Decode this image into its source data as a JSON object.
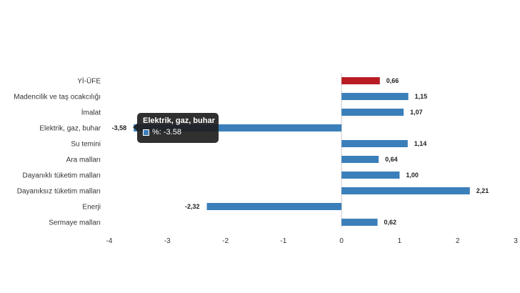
{
  "chart_data": {
    "type": "bar",
    "orientation": "horizontal",
    "categories": [
      "Yİ-ÜFE",
      "Madencilik ve taş ocakcılığı",
      "İmalat",
      "Elektrik, gaz, buhar",
      "Su temini",
      "Ara malları",
      "Dayanıklı tüketim malları",
      "Dayanıksız tüketim malları",
      "Enerji",
      "Sermaye malları"
    ],
    "values": [
      0.66,
      1.15,
      1.07,
      -3.58,
      1.14,
      0.64,
      1.0,
      2.21,
      -2.32,
      0.62
    ],
    "value_labels": [
      "0,66",
      "1,15",
      "1,07",
      "-3,58",
      "1,14",
      "0,64",
      "1,00",
      "2,21",
      "-2,32",
      "0,62"
    ],
    "xlim": [
      -4,
      3
    ],
    "xticks": [
      "-4",
      "-3",
      "-2",
      "-1",
      "0",
      "1",
      "2",
      "3"
    ],
    "colors": {
      "default": "#3a7fba",
      "highlight": "#b81c22"
    },
    "highlight_index": 0,
    "title": "",
    "xlabel": "",
    "ylabel": "",
    "grid": false,
    "tooltip": {
      "title": "Elektrik, gaz, buhar",
      "text": "%: -3.58"
    }
  }
}
